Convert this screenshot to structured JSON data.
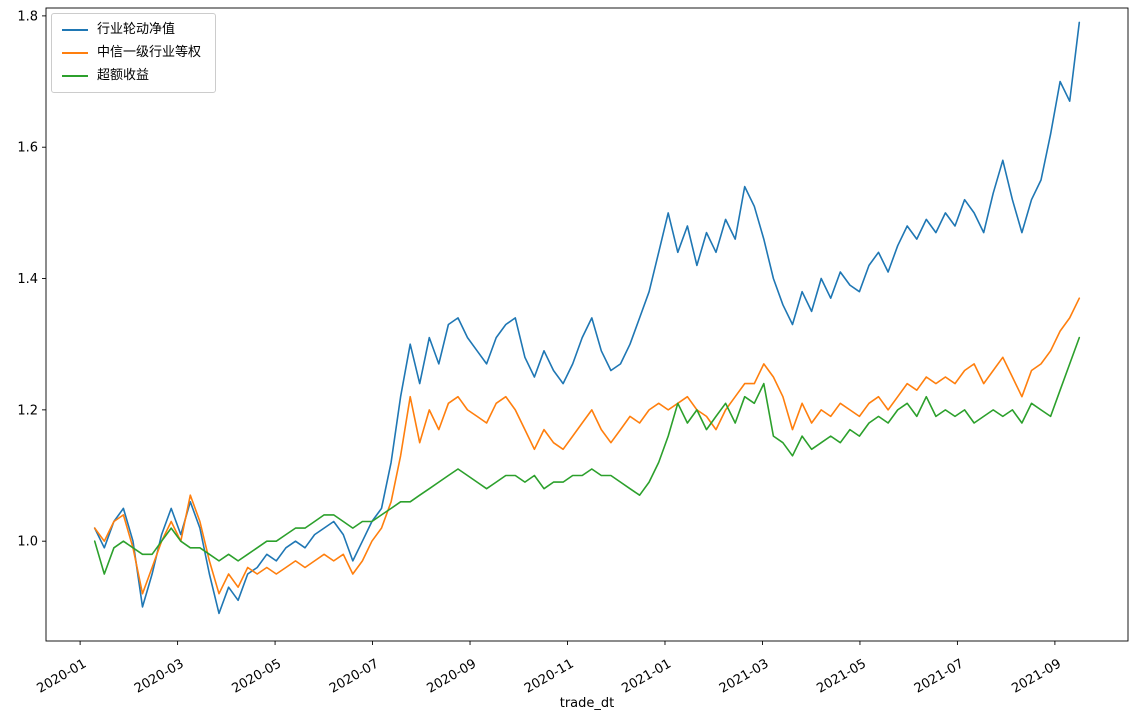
{
  "chart_data": {
    "type": "line",
    "title": "",
    "xlabel": "trade_dt",
    "ylabel": "",
    "grid": false,
    "legend_position": "upper left",
    "background_color": "#ffffff",
    "frame_color": "#000000",
    "xlim_months": [
      -0.7,
      21.5
    ],
    "ylim": [
      0.848,
      1.812
    ],
    "x_start_month": 0.3,
    "x_end_month": 20.5,
    "yticks": {
      "values": [
        1.0,
        1.2,
        1.4,
        1.6,
        1.8
      ],
      "labels": [
        "1.0",
        "1.2",
        "1.4",
        "1.6",
        "1.8"
      ]
    },
    "xticks": {
      "values": [
        0,
        2,
        4,
        6,
        8,
        10,
        12,
        14,
        16,
        18,
        20
      ],
      "labels": [
        "2020-01",
        "2020-03",
        "2020-05",
        "2020-07",
        "2020-09",
        "2020-11",
        "2021-01",
        "2021-03",
        "2021-05",
        "2021-07",
        "2021-09"
      ]
    },
    "series": [
      {
        "name": "行业轮动净值",
        "color": "#1f77b4",
        "values": [
          1.02,
          0.99,
          1.03,
          1.05,
          1.0,
          0.9,
          0.95,
          1.01,
          1.05,
          1.01,
          1.06,
          1.02,
          0.95,
          0.89,
          0.93,
          0.91,
          0.95,
          0.96,
          0.98,
          0.97,
          0.99,
          1.0,
          0.99,
          1.01,
          1.02,
          1.03,
          1.01,
          0.97,
          1.0,
          1.03,
          1.05,
          1.12,
          1.22,
          1.3,
          1.24,
          1.31,
          1.27,
          1.33,
          1.34,
          1.31,
          1.29,
          1.27,
          1.31,
          1.33,
          1.34,
          1.28,
          1.25,
          1.29,
          1.26,
          1.24,
          1.27,
          1.31,
          1.34,
          1.29,
          1.26,
          1.27,
          1.3,
          1.34,
          1.38,
          1.44,
          1.5,
          1.44,
          1.48,
          1.42,
          1.47,
          1.44,
          1.49,
          1.46,
          1.54,
          1.51,
          1.46,
          1.4,
          1.36,
          1.33,
          1.38,
          1.35,
          1.4,
          1.37,
          1.41,
          1.39,
          1.38,
          1.42,
          1.44,
          1.41,
          1.45,
          1.48,
          1.46,
          1.49,
          1.47,
          1.5,
          1.48,
          1.52,
          1.5,
          1.47,
          1.53,
          1.58,
          1.52,
          1.47,
          1.52,
          1.55,
          1.62,
          1.7,
          1.67,
          1.79
        ]
      },
      {
        "name": "中信一级行业等权",
        "color": "#ff7f0e",
        "values": [
          1.02,
          1.0,
          1.03,
          1.04,
          0.99,
          0.92,
          0.96,
          1.0,
          1.03,
          1.0,
          1.07,
          1.03,
          0.97,
          0.92,
          0.95,
          0.93,
          0.96,
          0.95,
          0.96,
          0.95,
          0.96,
          0.97,
          0.96,
          0.97,
          0.98,
          0.97,
          0.98,
          0.95,
          0.97,
          1.0,
          1.02,
          1.06,
          1.13,
          1.22,
          1.15,
          1.2,
          1.17,
          1.21,
          1.22,
          1.2,
          1.19,
          1.18,
          1.21,
          1.22,
          1.2,
          1.17,
          1.14,
          1.17,
          1.15,
          1.14,
          1.16,
          1.18,
          1.2,
          1.17,
          1.15,
          1.17,
          1.19,
          1.18,
          1.2,
          1.21,
          1.2,
          1.21,
          1.22,
          1.2,
          1.19,
          1.17,
          1.2,
          1.22,
          1.24,
          1.24,
          1.27,
          1.25,
          1.22,
          1.17,
          1.21,
          1.18,
          1.2,
          1.19,
          1.21,
          1.2,
          1.19,
          1.21,
          1.22,
          1.2,
          1.22,
          1.24,
          1.23,
          1.25,
          1.24,
          1.25,
          1.24,
          1.26,
          1.27,
          1.24,
          1.26,
          1.28,
          1.25,
          1.22,
          1.26,
          1.27,
          1.29,
          1.32,
          1.34,
          1.37
        ]
      },
      {
        "name": "超额收益",
        "color": "#2ca02c",
        "values": [
          1.0,
          0.95,
          0.99,
          1.0,
          0.99,
          0.98,
          0.98,
          1.0,
          1.02,
          1.0,
          0.99,
          0.99,
          0.98,
          0.97,
          0.98,
          0.97,
          0.98,
          0.99,
          1.0,
          1.0,
          1.01,
          1.02,
          1.02,
          1.03,
          1.04,
          1.04,
          1.03,
          1.02,
          1.03,
          1.03,
          1.04,
          1.05,
          1.06,
          1.06,
          1.07,
          1.08,
          1.09,
          1.1,
          1.11,
          1.1,
          1.09,
          1.08,
          1.09,
          1.1,
          1.1,
          1.09,
          1.1,
          1.08,
          1.09,
          1.09,
          1.1,
          1.1,
          1.11,
          1.1,
          1.1,
          1.09,
          1.08,
          1.07,
          1.09,
          1.12,
          1.16,
          1.21,
          1.18,
          1.2,
          1.17,
          1.19,
          1.21,
          1.18,
          1.22,
          1.21,
          1.24,
          1.16,
          1.15,
          1.13,
          1.16,
          1.14,
          1.15,
          1.16,
          1.15,
          1.17,
          1.16,
          1.18,
          1.19,
          1.18,
          1.2,
          1.21,
          1.19,
          1.22,
          1.19,
          1.2,
          1.19,
          1.2,
          1.18,
          1.19,
          1.2,
          1.19,
          1.2,
          1.18,
          1.21,
          1.2,
          1.19,
          1.23,
          1.27,
          1.31
        ]
      }
    ]
  }
}
